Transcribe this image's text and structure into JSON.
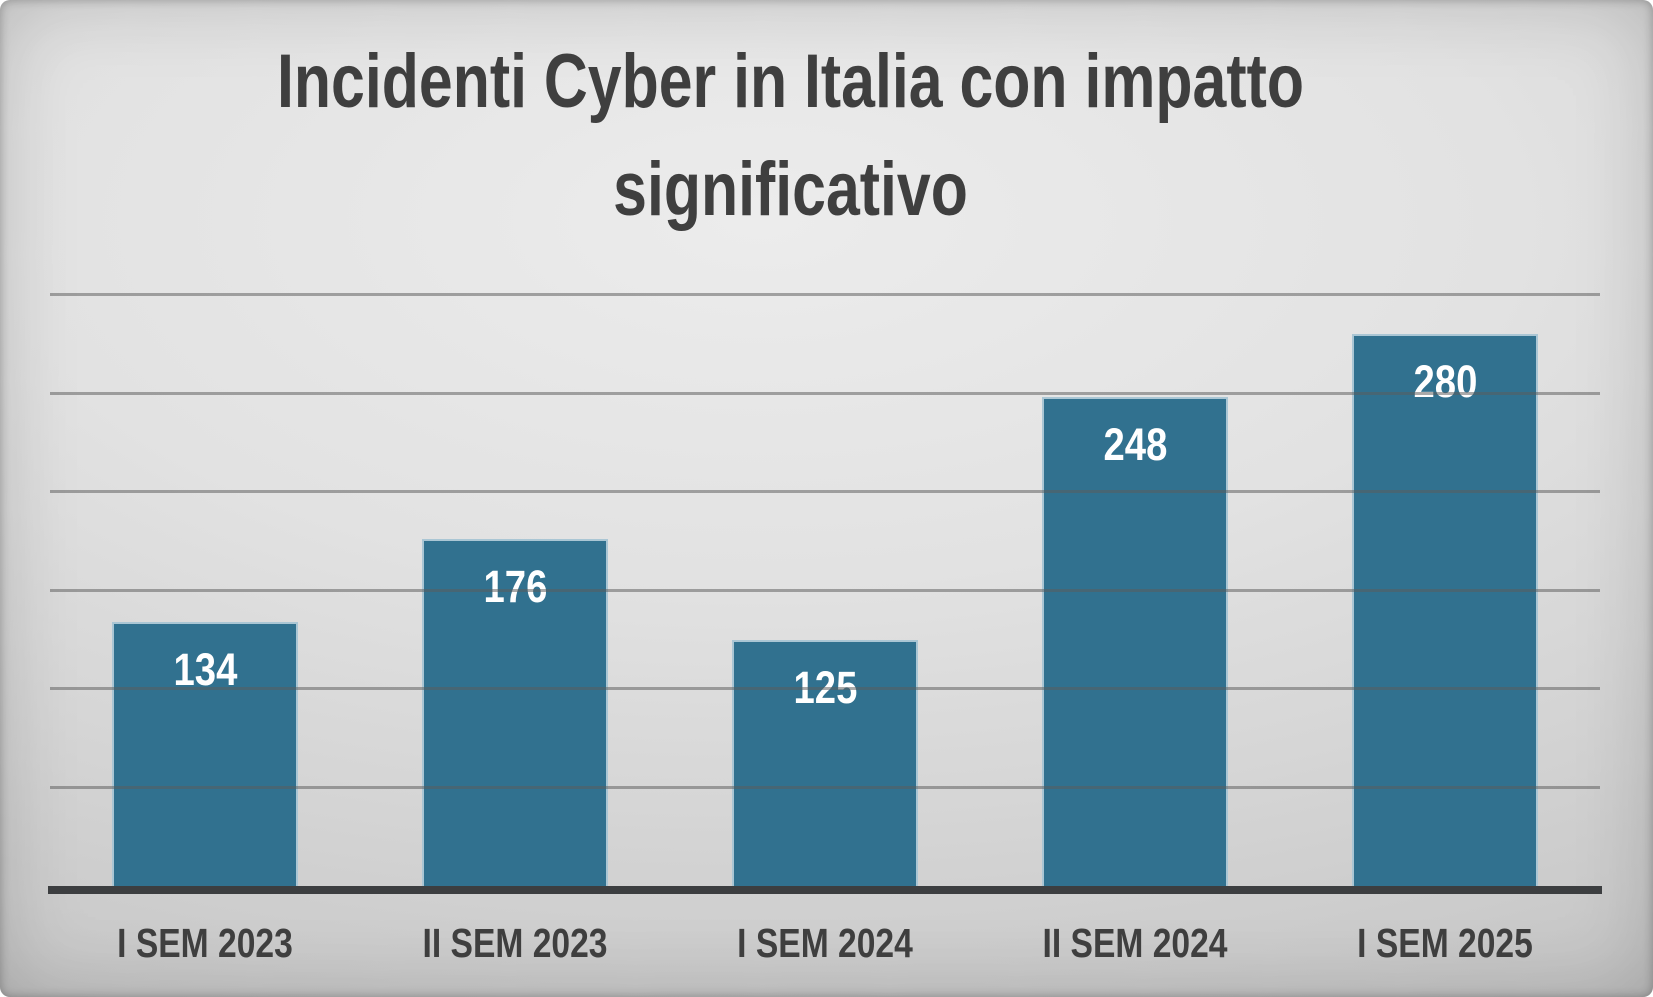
{
  "chart_data": {
    "type": "bar",
    "title": "Incidenti Cyber in Italia con impatto significativo",
    "categories": [
      "I SEM 2023",
      "II SEM 2023",
      "I SEM 2024",
      "II SEM 2024",
      "I SEM 2025"
    ],
    "values": [
      134,
      176,
      125,
      248,
      280
    ],
    "xlabel": "",
    "ylabel": "",
    "ylim": [
      0,
      300
    ],
    "gridline_step": 50,
    "grid": true,
    "legend": false,
    "bar_color": "#31718F",
    "bar_edge_color": "rgba(235,244,249,0.65)",
    "value_label_color": "#ffffff",
    "gridline_color": "rgba(92,92,92,0.52)",
    "axis_line_color": "#3c3e40",
    "text_color": "#3f3f3f",
    "background_color": "#d9d9d9"
  }
}
